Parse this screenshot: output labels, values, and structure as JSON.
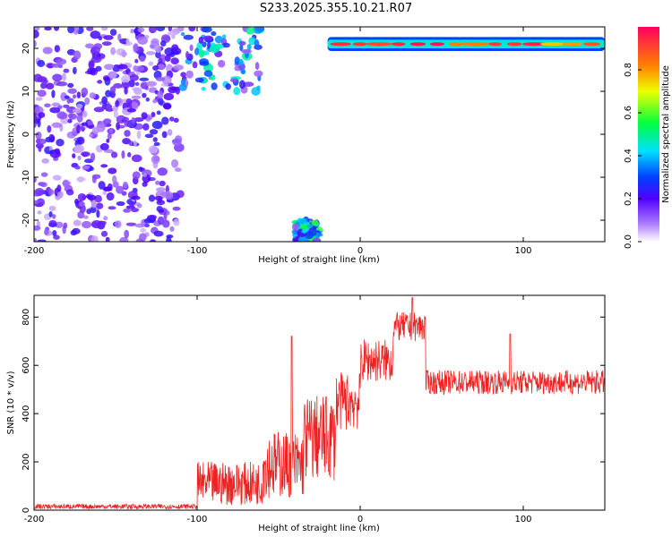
{
  "title": "S233.2025.355.10.21.R07",
  "chart_data": [
    {
      "type": "heatmap",
      "xlabel": "Height of straight line (km)",
      "ylabel": "Frequency (Hz)",
      "xlim": [
        -200,
        150
      ],
      "ylim": [
        -25,
        25
      ],
      "x_ticks": [
        -200,
        -100,
        0,
        100
      ],
      "y_ticks": [
        -20,
        -10,
        0,
        10,
        20
      ],
      "colorbar": {
        "label": "Normalized spectral amplitude",
        "range": [
          0,
          1
        ],
        "ticks": [
          "0.0",
          "0.2",
          "0.4",
          "0.6",
          "0.8"
        ]
      },
      "features": [
        {
          "name": "noise",
          "x_range": [
            -200,
            -110
          ],
          "y_range": [
            -25,
            25
          ],
          "amplitude": 0.15
        },
        {
          "name": "echo-top",
          "x_range": [
            -110,
            -60
          ],
          "y_range": [
            10,
            25
          ],
          "amplitude": 0.3
        },
        {
          "name": "echo-bottom",
          "x_range": [
            -40,
            -25
          ],
          "y_range": [
            -25,
            -20
          ],
          "amplitude": 0.35
        },
        {
          "name": "carrier",
          "x_range": [
            -20,
            150
          ],
          "y_range": [
            20,
            22
          ],
          "amplitude": 0.9
        }
      ]
    },
    {
      "type": "line",
      "xlabel": "Height of straight line (km)",
      "ylabel": "SNR (10 * v/v)",
      "xlim": [
        -200,
        150
      ],
      "ylim": [
        0,
        890
      ],
      "x_ticks": [
        -200,
        -100,
        0,
        100
      ],
      "y_ticks": [
        0,
        200,
        400,
        600,
        800
      ],
      "color": "#ee2222",
      "segments": [
        {
          "x": [
            -200,
            -100
          ],
          "mean": 15,
          "noise": 10
        },
        {
          "x": [
            -100,
            -60
          ],
          "mean": 110,
          "noise": 90
        },
        {
          "x": [
            -60,
            -35
          ],
          "mean": 190,
          "noise": 140
        },
        {
          "x": [
            -35,
            -15
          ],
          "mean": 300,
          "noise": 180
        },
        {
          "x": [
            -15,
            0
          ],
          "mean": 450,
          "noise": 120
        },
        {
          "x": [
            0,
            20
          ],
          "mean": 620,
          "noise": 90
        },
        {
          "x": [
            20,
            40
          ],
          "mean": 760,
          "noise": 60
        },
        {
          "x": [
            40,
            150
          ],
          "mean": 530,
          "noise": 50
        }
      ],
      "peaks": [
        {
          "x": -42,
          "y": 720
        },
        {
          "x": 32,
          "y": 880
        },
        {
          "x": 92,
          "y": 730
        }
      ]
    }
  ]
}
